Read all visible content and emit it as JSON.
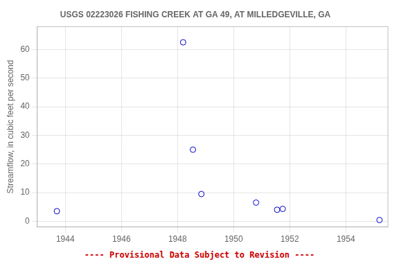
{
  "chart_data": {
    "type": "scatter",
    "title": "USGS 02223026 FISHING CREEK AT GA 49, AT MILLEDGEVILLE, GA",
    "ylabel": "Streamflow, in cubic feet per second",
    "x": [
      1943.7,
      1948.2,
      1948.55,
      1948.85,
      1950.8,
      1951.55,
      1951.75,
      1955.2
    ],
    "values": [
      3.5,
      62.5,
      25,
      9.5,
      6.5,
      4.0,
      4.3,
      0.4
    ],
    "color": "#0000CC",
    "marker": "circle",
    "xlim": [
      1943.0,
      1955.5
    ],
    "ylim": [
      -2,
      68
    ],
    "xticks": [
      1944,
      1946,
      1948,
      1950,
      1952,
      1954
    ],
    "yticks": [
      0,
      10,
      20,
      30,
      40,
      50,
      60
    ],
    "grid": true,
    "annotation": {
      "text": "---- Provisional Data Subject to Revision ----",
      "color": "#cc0000"
    }
  }
}
